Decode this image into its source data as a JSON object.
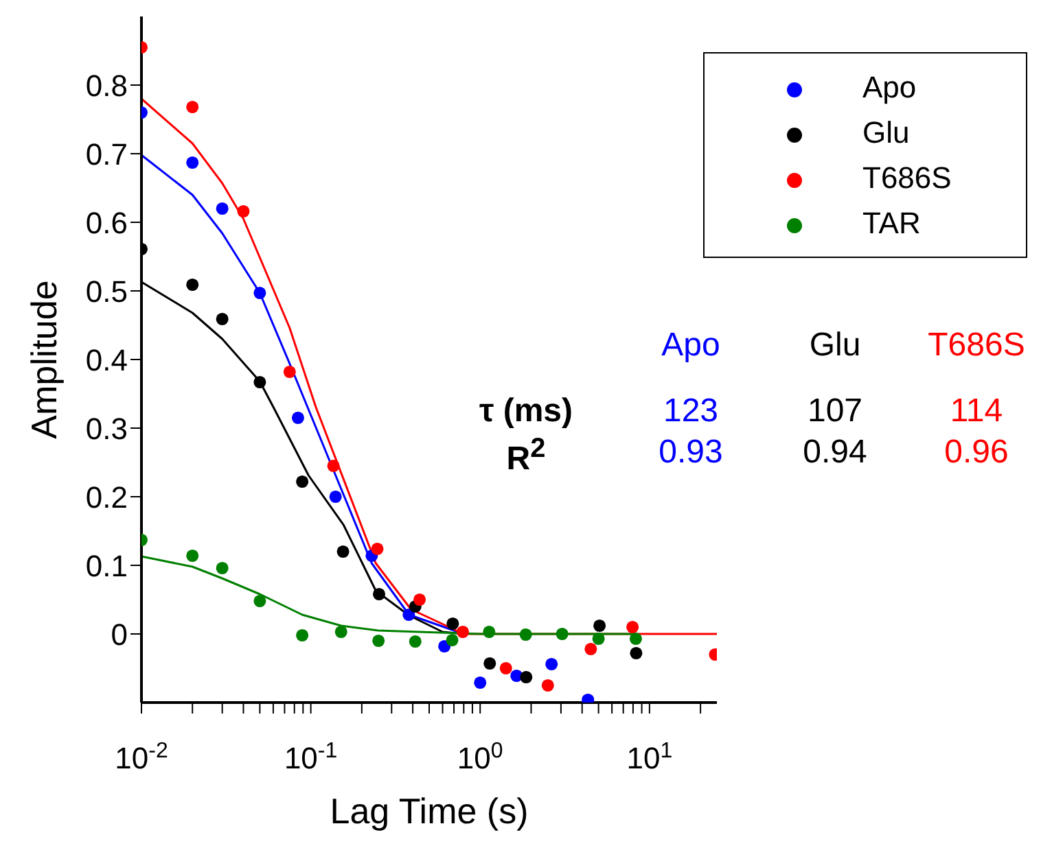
{
  "chart_data": {
    "type": "scatter",
    "xlabel": "Lag Time (s)",
    "ylabel": "Amplitude",
    "log": "x",
    "xlim": [
      0.01,
      25
    ],
    "ylim": [
      -0.1,
      0.9
    ],
    "xticks": [
      {
        "value": 0.01,
        "label": "10$^{-2}$"
      },
      {
        "value": 0.02,
        "label": null
      },
      {
        "value": 0.03,
        "label": null
      },
      {
        "value": 0.04,
        "label": null
      },
      {
        "value": 0.05,
        "label": null
      },
      {
        "value": 0.06,
        "label": null
      },
      {
        "value": 0.07,
        "label": null
      },
      {
        "value": 0.08,
        "label": null
      },
      {
        "value": 0.09,
        "label": null
      },
      {
        "value": 0.1,
        "label": "10$^{-1}$"
      },
      {
        "value": 0.2,
        "label": null
      },
      {
        "value": 0.3,
        "label": null
      },
      {
        "value": 0.4,
        "label": null
      },
      {
        "value": 0.5,
        "label": null
      },
      {
        "value": 0.6,
        "label": null
      },
      {
        "value": 0.7,
        "label": null
      },
      {
        "value": 0.8,
        "label": null
      },
      {
        "value": 0.9,
        "label": null
      },
      {
        "value": 1,
        "label": "10$^{0}$"
      },
      {
        "value": 2,
        "label": null
      },
      {
        "value": 3,
        "label": null
      },
      {
        "value": 4,
        "label": null
      },
      {
        "value": 5,
        "label": null
      },
      {
        "value": 6,
        "label": null
      },
      {
        "value": 7,
        "label": null
      },
      {
        "value": 8,
        "label": null
      },
      {
        "value": 9,
        "label": null
      },
      {
        "value": 10,
        "label": "10$^{1}$"
      },
      {
        "value": 20,
        "label": null
      }
    ],
    "yticks": [
      0,
      0.1,
      0.2,
      0.3,
      0.4,
      0.5,
      0.6,
      0.7,
      0.8
    ],
    "legend": "top right",
    "marker": "circle",
    "series": [
      {
        "name": "Apo",
        "color": "#0000ff",
        "x": [
          0.01,
          0.02,
          0.03,
          0.05,
          0.084,
          0.14,
          0.229,
          0.379,
          0.615,
          1.0,
          1.64,
          2.64,
          4.33
        ],
        "values": [
          0.76,
          0.687,
          0.62,
          0.497,
          0.315,
          0.2,
          0.114,
          0.028,
          -0.018,
          -0.071,
          -0.061,
          -0.044,
          -0.096
        ]
      },
      {
        "name": "Glu",
        "color": "#000000",
        "x": [
          0.01,
          0.02,
          0.03,
          0.05,
          0.089,
          0.155,
          0.253,
          0.414,
          0.689,
          1.14,
          1.87,
          5.07,
          8.34
        ],
        "values": [
          0.561,
          0.509,
          0.459,
          0.367,
          0.222,
          0.12,
          0.058,
          0.04,
          0.015,
          -0.043,
          -0.063,
          0.012,
          -0.028
        ]
      },
      {
        "name": "T686S",
        "color": "#ff0000",
        "x": [
          0.01,
          0.02,
          0.04,
          0.075,
          0.136,
          0.247,
          0.439,
          0.79,
          1.42,
          2.51,
          4.5,
          7.94,
          24.4
        ],
        "values": [
          0.855,
          0.768,
          0.616,
          0.382,
          0.245,
          0.124,
          0.05,
          0.003,
          -0.05,
          -0.075,
          -0.022,
          0.01,
          -0.03
        ]
      },
      {
        "name": "TAR",
        "color": "#008000",
        "x": [
          0.01,
          0.02,
          0.03,
          0.05,
          0.089,
          0.151,
          0.251,
          0.414,
          0.684,
          1.13,
          1.86,
          3.05,
          5.0,
          8.3
        ],
        "values": [
          0.137,
          0.114,
          0.096,
          0.048,
          -0.002,
          0.003,
          -0.01,
          -0.011,
          -0.009,
          0.003,
          -0.001,
          0,
          -0.007,
          -0.007
        ]
      },
      {
        "color": "#0000ff",
        "type": "line",
        "marker": "none",
        "x": [
          0.01,
          0.02,
          0.03,
          0.05,
          0.075,
          0.097,
          0.229,
          0.38,
          0.8
        ],
        "values": [
          0.698,
          0.64,
          0.584,
          0.497,
          0.394,
          0.327,
          0.103,
          0.028,
          0
        ]
      },
      {
        "color": "#000000",
        "type": "line",
        "marker": "none",
        "x": [
          0.01,
          0.02,
          0.03,
          0.05,
          0.06,
          0.097,
          0.156,
          0.242,
          0.38,
          0.6,
          0.8
        ],
        "values": [
          0.513,
          0.468,
          0.43,
          0.368,
          0.331,
          0.231,
          0.159,
          0.063,
          0.027,
          0.003,
          0
        ]
      },
      {
        "color": "#ff0000",
        "type": "line",
        "marker": "none",
        "x": [
          0.01,
          0.02,
          0.03,
          0.04,
          0.075,
          0.107,
          0.242,
          0.39,
          0.8,
          25
        ],
        "values": [
          0.78,
          0.715,
          0.657,
          0.605,
          0.446,
          0.331,
          0.103,
          0.036,
          0,
          0
        ]
      },
      {
        "color": "#008000",
        "type": "line",
        "marker": "none",
        "x": [
          0.01,
          0.02,
          0.03,
          0.05,
          0.089,
          0.151,
          0.25,
          1.0,
          8.3
        ],
        "values": [
          0.113,
          0.098,
          0.081,
          0.058,
          0.028,
          0.012,
          0.005,
          0,
          0
        ]
      }
    ],
    "annotations": [
      "Apo",
      "Glu",
      "T686S",
      "τ (ms)",
      "123",
      "107",
      "114",
      "R$^{2}$",
      "0.93",
      "0.94",
      "0.96"
    ]
  }
}
